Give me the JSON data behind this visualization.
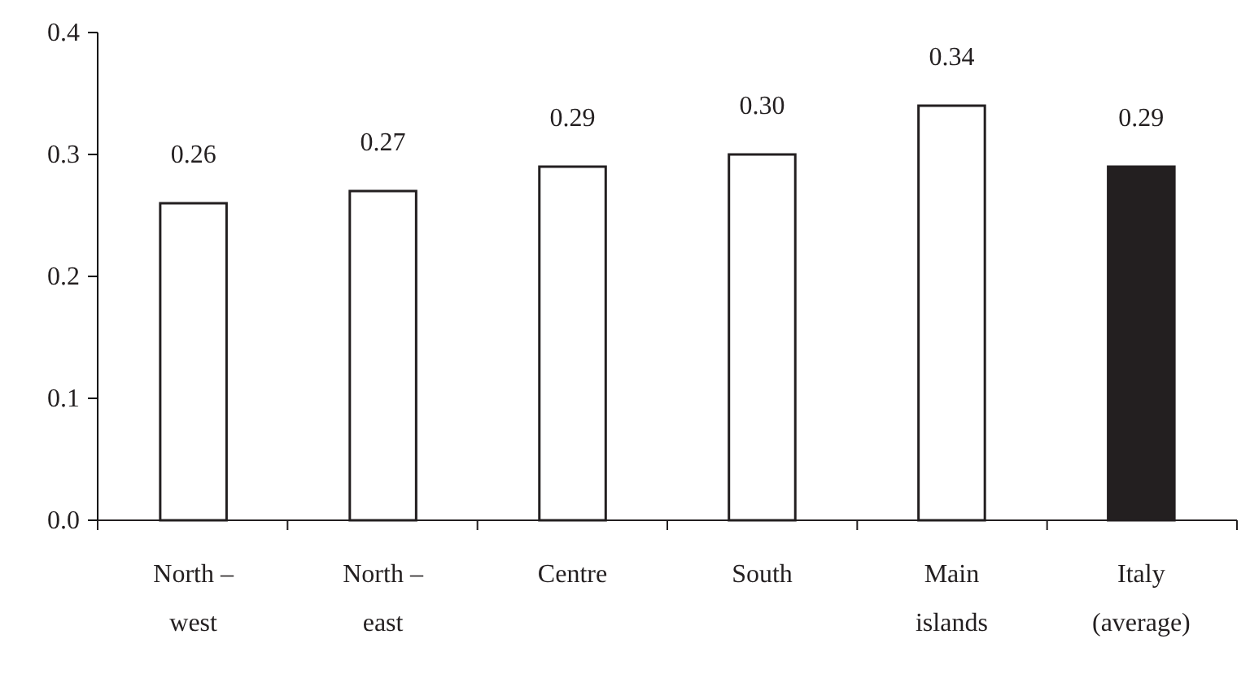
{
  "chart_data": {
    "type": "bar",
    "categories": [
      "North – west",
      "North – east",
      "Centre",
      "South",
      "Main islands",
      "Italy (average)"
    ],
    "values": [
      0.26,
      0.27,
      0.29,
      0.3,
      0.34,
      0.29
    ],
    "colors": [
      "#ffffff",
      "#ffffff",
      "#ffffff",
      "#ffffff",
      "#ffffff",
      "#231f20"
    ],
    "ylim": [
      0,
      0.4
    ],
    "yticks": [
      {
        "value": 0,
        "label": "0.0"
      },
      {
        "value": 0.1,
        "label": "0.1"
      },
      {
        "value": 0.2,
        "label": "0.2"
      },
      {
        "value": 0.3,
        "label": "0.3"
      },
      {
        "value": 0.4,
        "label": "0.4"
      }
    ],
    "value_labels": [
      "0.26",
      "0.27",
      "0.29",
      "0.30",
      "0.34",
      "0.29"
    ],
    "grid": false
  }
}
